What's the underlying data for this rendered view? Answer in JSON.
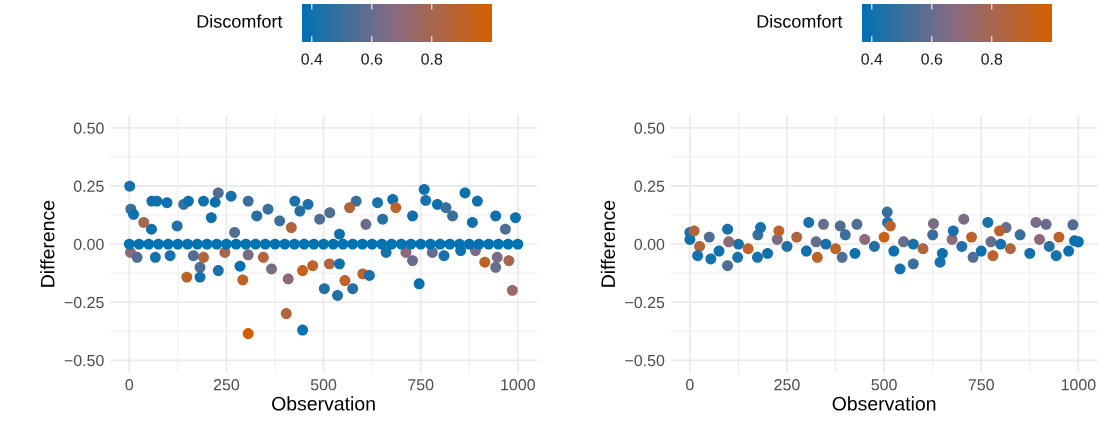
{
  "chart_data": [
    {
      "type": "scatter",
      "xlabel": "Observation",
      "ylabel": "Difference",
      "clabel": "Discomfort",
      "clim": [
        0.367,
        1.0
      ],
      "cticks": [
        {
          "value": 0.4,
          "label": "0.4"
        },
        {
          "value": 0.6,
          "label": "0.6"
        },
        {
          "value": 0.8,
          "label": "0.8"
        }
      ],
      "xlim": [
        -50,
        1050
      ],
      "xticks": [
        0,
        250,
        500,
        750,
        1000
      ],
      "ylim": [
        -0.555,
        0.555
      ],
      "yticks": [
        {
          "value": -0.5,
          "label": "−0.50"
        },
        {
          "value": -0.25,
          "label": "−0.25"
        },
        {
          "value": 0,
          "label": "0.00"
        },
        {
          "value": 0.25,
          "label": "0.25"
        },
        {
          "value": 0.5,
          "label": "0.50"
        }
      ],
      "grid": true,
      "marker": "circle",
      "x": [
        1,
        4,
        11,
        58,
        71,
        97,
        140,
        152,
        191,
        221,
        229,
        262,
        306,
        357,
        426,
        460,
        516,
        584,
        639,
        678,
        686,
        759,
        763,
        793,
        815,
        864,
        896,
        943,
        994,
        57,
        123,
        211,
        271,
        328,
        387,
        439,
        490,
        541,
        609,
        652,
        729,
        832,
        883,
        968,
        37,
        417,
        567,
        3,
        20,
        67,
        105,
        148,
        165,
        182,
        191,
        182,
        229,
        246,
        285,
        292,
        306,
        306,
        345,
        366,
        409,
        404,
        446,
        446,
        472,
        502,
        515,
        536,
        541,
        555,
        575,
        601,
        618,
        661,
        712,
        729,
        746,
        780,
        810,
        853,
        891,
        915,
        947,
        943,
        977,
        986,
        0,
        25,
        50,
        75,
        100,
        125,
        150,
        175,
        200,
        225,
        250,
        275,
        300,
        325,
        350,
        375,
        400,
        425,
        450,
        475,
        500,
        525,
        550,
        575,
        600,
        625,
        650,
        675,
        700,
        725,
        750,
        775,
        800,
        825,
        850,
        875,
        900,
        925,
        950,
        975,
        1000
      ],
      "values": [
        0.249,
        0.15,
        0.128,
        0.185,
        0.185,
        0.178,
        0.171,
        0.185,
        0.185,
        0.18,
        0.22,
        0.206,
        0.185,
        0.15,
        0.185,
        0.171,
        0.135,
        0.185,
        0.178,
        0.192,
        0.157,
        0.235,
        0.188,
        0.171,
        0.157,
        0.22,
        0.185,
        0.121,
        0.114,
        0.064,
        0.078,
        0.114,
        0.05,
        0.121,
        0.1,
        0.142,
        0.107,
        0.043,
        0.085,
        0.107,
        0.121,
        0.121,
        0.093,
        0.064,
        0.093,
        0.071,
        0.157,
        -0.036,
        -0.057,
        -0.057,
        -0.05,
        -0.142,
        -0.05,
        -0.1,
        -0.057,
        -0.142,
        -0.114,
        -0.036,
        -0.095,
        -0.154,
        -0.046,
        -0.385,
        -0.057,
        -0.107,
        -0.15,
        -0.299,
        -0.37,
        -0.114,
        -0.093,
        -0.192,
        -0.085,
        -0.221,
        -0.085,
        -0.157,
        -0.192,
        -0.128,
        -0.135,
        -0.036,
        -0.036,
        -0.071,
        -0.171,
        -0.036,
        -0.05,
        -0.028,
        -0.028,
        -0.078,
        -0.057,
        -0.1,
        -0.071,
        -0.199,
        0,
        0,
        0,
        0,
        0,
        0,
        0,
        0,
        0,
        0,
        0,
        0,
        0,
        0,
        0,
        0,
        0,
        0,
        0,
        0,
        0,
        0,
        0,
        0,
        0,
        0,
        0,
        0,
        0,
        0,
        0,
        0,
        0,
        0,
        0,
        0,
        0,
        0,
        0,
        0,
        0
      ],
      "cvalues": [
        0.42,
        0.5,
        0.4,
        0.4,
        0.4,
        0.4,
        0.5,
        0.4,
        0.4,
        0.4,
        0.55,
        0.42,
        0.5,
        0.5,
        0.42,
        0.42,
        0.55,
        0.5,
        0.42,
        0.4,
        0.9,
        0.4,
        0.42,
        0.4,
        0.5,
        0.4,
        0.4,
        0.4,
        0.4,
        0.4,
        0.45,
        0.4,
        0.55,
        0.45,
        0.5,
        0.45,
        0.55,
        0.4,
        0.6,
        0.45,
        0.4,
        0.5,
        0.4,
        0.55,
        0.8,
        0.85,
        0.85,
        0.7,
        0.55,
        0.42,
        0.42,
        0.9,
        0.55,
        0.55,
        0.85,
        0.4,
        0.42,
        0.8,
        0.38,
        0.9,
        0.65,
        1.0,
        0.85,
        0.65,
        0.7,
        0.85,
        0.38,
        0.95,
        0.9,
        0.45,
        0.85,
        0.45,
        0.4,
        0.9,
        0.45,
        0.9,
        0.42,
        0.42,
        0.7,
        0.6,
        0.38,
        0.6,
        0.42,
        0.42,
        0.65,
        0.9,
        0.65,
        0.6,
        0.8,
        0.75,
        0.37,
        0.37,
        0.37,
        0.37,
        0.37,
        0.37,
        0.37,
        0.37,
        0.37,
        0.37,
        0.37,
        0.37,
        0.37,
        0.37,
        0.37,
        0.37,
        0.37,
        0.37,
        0.37,
        0.37,
        0.37,
        0.37,
        0.37,
        0.37,
        0.37,
        0.37,
        0.37,
        0.37,
        0.37,
        0.37,
        0.37,
        0.37,
        0.37,
        0.37,
        0.37,
        0.37,
        0.37,
        0.37,
        0.37,
        0.37,
        0.37
      ]
    },
    {
      "type": "scatter",
      "xlabel": "Observation",
      "ylabel": "Difference",
      "clabel": "Discomfort",
      "clim": [
        0.367,
        1.0
      ],
      "cticks": [
        {
          "value": 0.4,
          "label": "0.4"
        },
        {
          "value": 0.6,
          "label": "0.6"
        },
        {
          "value": 0.8,
          "label": "0.8"
        }
      ],
      "xlim": [
        -50,
        1050
      ],
      "xticks": [
        0,
        250,
        500,
        750,
        1000
      ],
      "ylim": [
        -0.555,
        0.555
      ],
      "yticks": [
        {
          "value": -0.5,
          "label": "−0.50"
        },
        {
          "value": -0.25,
          "label": "−0.25"
        },
        {
          "value": 0,
          "label": "0.00"
        },
        {
          "value": 0.25,
          "label": "0.25"
        },
        {
          "value": 0.5,
          "label": "0.50"
        }
      ],
      "grid": true,
      "marker": "circle",
      "x": [
        0,
        25,
        50,
        75,
        100,
        125,
        150,
        175,
        200,
        225,
        250,
        275,
        300,
        325,
        350,
        375,
        400,
        425,
        450,
        475,
        500,
        525,
        550,
        575,
        600,
        625,
        650,
        675,
        700,
        725,
        750,
        775,
        800,
        825,
        850,
        875,
        900,
        925,
        950,
        975,
        1000,
        508,
        509,
        306,
        344,
        627,
        705,
        767,
        891,
        917,
        986,
        814,
        516,
        97,
        54,
        20,
        541,
        575,
        644,
        729,
        780,
        943,
        328,
        123,
        174,
        392,
        0,
        11,
        97,
        182,
        229,
        387,
        430,
        678,
        797,
        990
      ],
      "values": [
        0.02,
        -0.01,
        0.03,
        -0.03,
        0.01,
        0.0,
        -0.02,
        0.04,
        -0.04,
        0.02,
        -0.01,
        0.03,
        -0.03,
        0.01,
        0.0,
        -0.02,
        0.04,
        -0.04,
        0.02,
        -0.01,
        0.03,
        -0.03,
        0.01,
        0.0,
        -0.02,
        0.04,
        -0.04,
        0.02,
        -0.01,
        0.03,
        -0.03,
        0.01,
        0.0,
        -0.02,
        0.04,
        -0.04,
        0.02,
        -0.01,
        0.03,
        -0.03,
        0.01,
        0.138,
        0.093,
        0.093,
        0.085,
        0.088,
        0.107,
        0.093,
        0.093,
        0.085,
        0.083,
        0.071,
        0.078,
        -0.093,
        -0.064,
        -0.05,
        -0.107,
        -0.085,
        -0.078,
        -0.057,
        -0.05,
        -0.05,
        -0.057,
        -0.057,
        -0.057,
        -0.057,
        0.05,
        0.057,
        0.064,
        0.071,
        0.057,
        0.078,
        0.085,
        0.057,
        0.057,
        0.014
      ],
      "cvalues": [
        0.4,
        0.85,
        0.55,
        0.4,
        0.7,
        0.42,
        0.9,
        0.5,
        0.4,
        0.65,
        0.45,
        0.85,
        0.4,
        0.6,
        0.42,
        0.9,
        0.5,
        0.4,
        0.7,
        0.45,
        0.95,
        0.4,
        0.6,
        0.42,
        0.85,
        0.5,
        0.4,
        0.7,
        0.45,
        0.9,
        0.4,
        0.6,
        0.42,
        0.85,
        0.5,
        0.4,
        0.7,
        0.45,
        0.9,
        0.4,
        0.38,
        0.5,
        0.42,
        0.42,
        0.6,
        0.65,
        0.65,
        0.42,
        0.65,
        0.6,
        0.55,
        0.6,
        0.9,
        0.55,
        0.42,
        0.42,
        0.42,
        0.5,
        0.42,
        0.55,
        0.9,
        0.42,
        0.9,
        0.42,
        0.42,
        0.55,
        0.42,
        0.85,
        0.42,
        0.42,
        0.9,
        0.55,
        0.55,
        0.42,
        0.9,
        0.4
      ]
    }
  ]
}
